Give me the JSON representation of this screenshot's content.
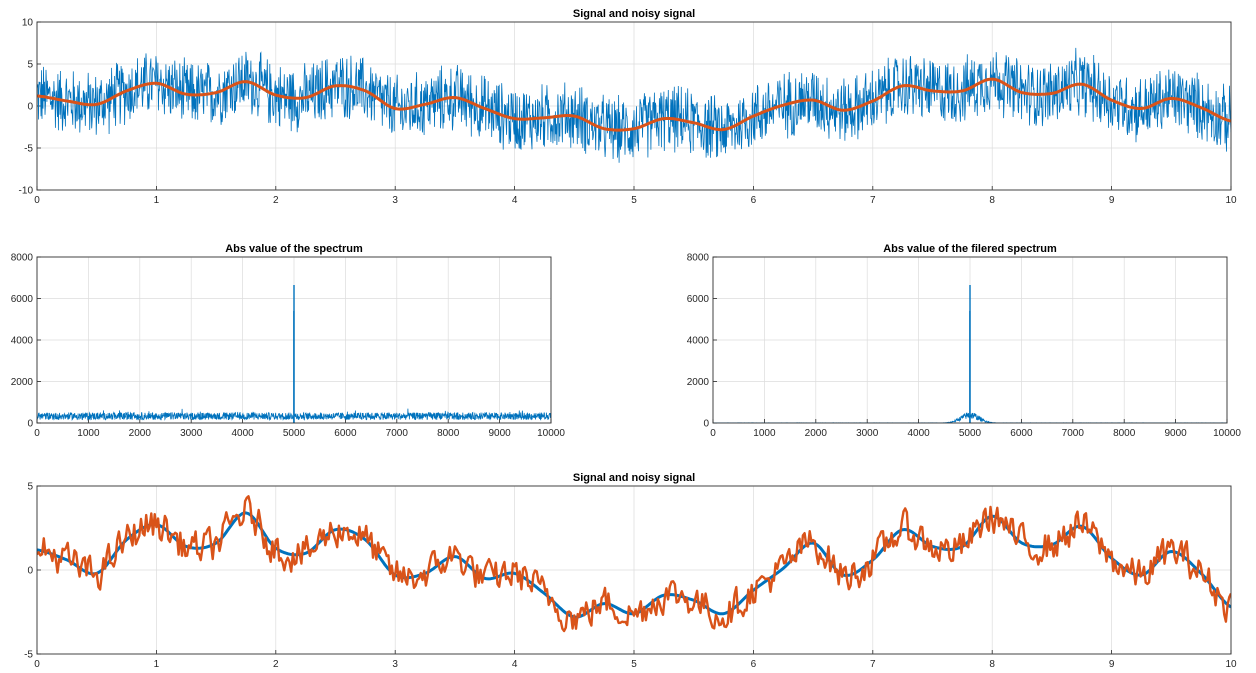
{
  "colors": {
    "blue": "#0072BD",
    "orange": "#D95319"
  },
  "chart_data": [
    {
      "type": "line",
      "title": "Signal and noisy signal",
      "xlim": [
        0,
        10
      ],
      "ylim": [
        -10,
        10
      ],
      "xticks": [
        "0",
        "1",
        "2",
        "3",
        "4",
        "5",
        "6",
        "7",
        "8",
        "9",
        "10"
      ],
      "yticks": [
        "10",
        "5",
        "0",
        "-5",
        "-10"
      ],
      "grid": true,
      "series": [
        {
          "role": "noisy",
          "color": "#0072BD",
          "noise_amplitude": 4.5,
          "x": [
            0,
            0.25,
            0.5,
            0.75,
            1,
            1.25,
            1.5,
            1.75,
            2,
            2.25,
            2.5,
            2.75,
            3,
            3.25,
            3.5,
            3.75,
            4,
            4.25,
            4.5,
            4.75,
            5,
            5.25,
            5.5,
            5.75,
            6,
            6.25,
            6.5,
            6.75,
            7,
            7.25,
            7.5,
            7.75,
            8,
            8.25,
            8.5,
            8.75,
            9,
            9.25,
            9.5,
            9.75,
            10
          ],
          "y": [
            1.2,
            0.6,
            0.2,
            1.8,
            2.7,
            1.4,
            1.6,
            2.9,
            1.3,
            1.0,
            2.4,
            1.8,
            -0.3,
            0.2,
            1.0,
            -0.3,
            -1.5,
            -1.4,
            -1.2,
            -2.7,
            -2.7,
            -1.5,
            -2.0,
            -2.8,
            -1.2,
            0.1,
            0.7,
            -0.5,
            0.6,
            2.4,
            1.8,
            1.8,
            3.2,
            1.6,
            1.5,
            2.6,
            0.7,
            -0.3,
            0.9,
            -0.2,
            -1.8
          ]
        },
        {
          "role": "clean",
          "color": "#D95319",
          "x": [
            0,
            0.25,
            0.5,
            0.75,
            1,
            1.25,
            1.5,
            1.75,
            2,
            2.25,
            2.5,
            2.75,
            3,
            3.25,
            3.5,
            3.75,
            4,
            4.25,
            4.5,
            4.75,
            5,
            5.25,
            5.5,
            5.75,
            6,
            6.25,
            6.5,
            6.75,
            7,
            7.25,
            7.5,
            7.75,
            8,
            8.25,
            8.5,
            8.75,
            9,
            9.25,
            9.5,
            9.75,
            10
          ],
          "y": [
            1.2,
            0.6,
            0.2,
            1.8,
            2.7,
            1.4,
            1.6,
            2.9,
            1.3,
            1.0,
            2.4,
            1.8,
            -0.3,
            0.2,
            1.0,
            -0.3,
            -1.5,
            -1.4,
            -1.2,
            -2.7,
            -2.7,
            -1.5,
            -2.0,
            -2.8,
            -1.2,
            0.1,
            0.7,
            -0.5,
            0.6,
            2.4,
            1.8,
            1.8,
            3.2,
            1.6,
            1.5,
            2.6,
            0.7,
            -0.3,
            0.9,
            -0.2,
            -1.8
          ]
        }
      ]
    },
    {
      "type": "line",
      "title": "Abs value of the spectrum",
      "xlim": [
        0,
        10000
      ],
      "ylim": [
        0,
        8000
      ],
      "xticks": [
        "0",
        "1000",
        "2000",
        "3000",
        "4000",
        "5000",
        "6000",
        "7000",
        "8000",
        "9000",
        "10000"
      ],
      "yticks": [
        "8000",
        "6000",
        "4000",
        "2000",
        "0"
      ],
      "grid": true,
      "series": [
        {
          "role": "spectrum",
          "color": "#0072BD",
          "noise_floor": 330,
          "noise_range": 250,
          "peaks": [
            {
              "x": 5000,
              "y": 6650
            },
            {
              "x": 4998,
              "y": 5400
            }
          ]
        }
      ]
    },
    {
      "type": "line",
      "title": "Abs value of the filered spectrum",
      "xlim": [
        0,
        10000
      ],
      "ylim": [
        0,
        8000
      ],
      "xticks": [
        "0",
        "1000",
        "2000",
        "3000",
        "4000",
        "5000",
        "6000",
        "7000",
        "8000",
        "9000",
        "10000"
      ],
      "yticks": [
        "8000",
        "6000",
        "4000",
        "2000",
        "0"
      ],
      "grid": true,
      "series": [
        {
          "role": "filtered-spectrum",
          "color": "#0072BD",
          "center": 5000,
          "halfwidth": 450,
          "lobe_height": 560,
          "peaks": [
            {
              "x": 5000,
              "y": 6650
            },
            {
              "x": 4998,
              "y": 5400
            }
          ]
        }
      ]
    },
    {
      "type": "line",
      "title": "Signal and noisy signal",
      "xlim": [
        0,
        10
      ],
      "ylim": [
        -5,
        5
      ],
      "xticks": [
        "0",
        "1",
        "2",
        "3",
        "4",
        "5",
        "6",
        "7",
        "8",
        "9",
        "10"
      ],
      "yticks": [
        "5",
        "0",
        "-5"
      ],
      "grid": true,
      "series": [
        {
          "role": "clean",
          "color": "#0072BD",
          "x": [
            0,
            0.25,
            0.5,
            0.75,
            1,
            1.25,
            1.5,
            1.75,
            2,
            2.25,
            2.5,
            2.75,
            3,
            3.25,
            3.5,
            3.75,
            4,
            4.25,
            4.5,
            4.75,
            5,
            5.25,
            5.5,
            5.75,
            6,
            6.25,
            6.5,
            6.75,
            7,
            7.25,
            7.5,
            7.75,
            8,
            8.25,
            8.5,
            8.75,
            9,
            9.25,
            9.5,
            9.75,
            10
          ],
          "y": [
            1.2,
            0.6,
            -0.2,
            1.8,
            2.7,
            1.4,
            1.6,
            3.4,
            1.3,
            1.0,
            2.4,
            1.8,
            -0.3,
            -0.2,
            0.8,
            -0.5,
            -0.2,
            -1.4,
            -2.8,
            -2.0,
            -2.6,
            -1.5,
            -1.8,
            -2.6,
            -1.2,
            0.1,
            1.6,
            -0.3,
            0.6,
            2.4,
            1.4,
            1.4,
            3.2,
            1.6,
            1.5,
            2.6,
            0.7,
            -0.3,
            1.1,
            -0.2,
            -2.2
          ]
        },
        {
          "role": "recovered",
          "color": "#D95319",
          "noise_amplitude": 0.9,
          "x": [
            0,
            0.25,
            0.5,
            0.75,
            1,
            1.25,
            1.5,
            1.75,
            2,
            2.25,
            2.5,
            2.75,
            3,
            3.25,
            3.5,
            3.75,
            4,
            4.25,
            4.5,
            4.75,
            5,
            5.25,
            5.5,
            5.75,
            6,
            6.25,
            6.5,
            6.75,
            7,
            7.25,
            7.5,
            7.75,
            8,
            8.25,
            8.5,
            8.75,
            9,
            9.25,
            9.5,
            9.75,
            10
          ],
          "y": [
            1.2,
            0.6,
            -0.2,
            1.8,
            2.7,
            1.4,
            1.6,
            3.4,
            1.3,
            1.0,
            2.4,
            1.8,
            -0.3,
            -0.2,
            0.8,
            -0.5,
            -0.2,
            -1.4,
            -2.8,
            -2.0,
            -2.6,
            -1.5,
            -1.8,
            -2.6,
            -1.2,
            0.1,
            1.6,
            -0.3,
            0.6,
            2.4,
            1.4,
            1.4,
            3.2,
            1.6,
            1.5,
            2.6,
            0.7,
            -0.3,
            1.1,
            -0.2,
            -2.2
          ]
        }
      ]
    }
  ]
}
